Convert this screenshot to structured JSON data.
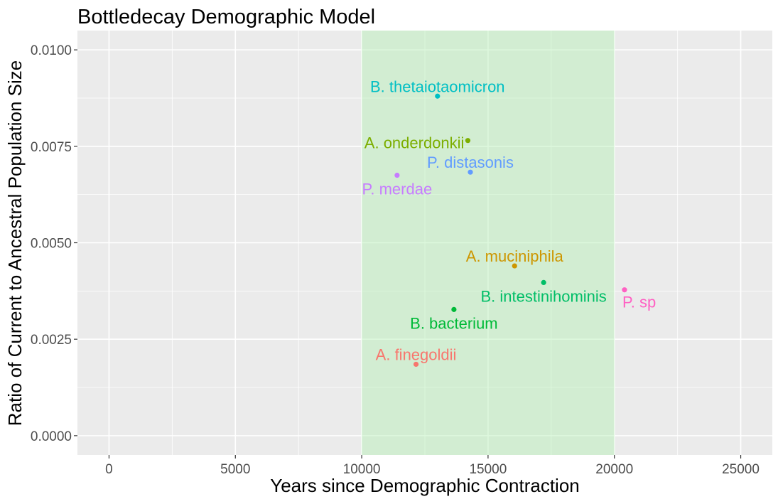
{
  "chart_data": {
    "type": "scatter",
    "title": "Bottledecay Demographic Model",
    "xlabel": "Years since Demographic Contraction",
    "ylabel": "Ratio of Current to Ancestral Population Size",
    "xlim": [
      -1250,
      26250
    ],
    "ylim": [
      -0.0005,
      0.0105
    ],
    "x_ticks": [
      0,
      5000,
      10000,
      15000,
      20000,
      25000
    ],
    "x_tick_labels": [
      "0",
      "5000",
      "10000",
      "15000",
      "20000",
      "25000"
    ],
    "y_ticks": [
      0.0,
      0.0025,
      0.005,
      0.0075,
      0.01
    ],
    "y_tick_labels": [
      "0.0000",
      "0.0025",
      "0.0050",
      "0.0075",
      "0.0100"
    ],
    "grid": true,
    "legend": "none",
    "shaded_region": {
      "x": [
        10000,
        20000
      ],
      "color": "#b3f0b3"
    },
    "colors": {
      "panel_background": "#ebebeb",
      "gridline": "#ffffff"
    },
    "points": [
      {
        "name": "B. thetaiotaomicron",
        "x": 13000,
        "y": 0.0088,
        "color": "#00BFC4",
        "label_anchor": "above"
      },
      {
        "name": "A. onderdonkii",
        "x": 14200,
        "y": 0.00765,
        "color": "#7CAE00",
        "label_anchor": "left"
      },
      {
        "name": "P. distasonis",
        "x": 14300,
        "y": 0.00683,
        "color": "#619CFF",
        "label_anchor": "above"
      },
      {
        "name": "P. merdae",
        "x": 11400,
        "y": 0.00675,
        "color": "#C77CFF",
        "label_anchor": "below"
      },
      {
        "name": "A. muciniphila",
        "x": 16050,
        "y": 0.0044,
        "color": "#CD9600",
        "label_anchor": "above"
      },
      {
        "name": "B. intestinihominis",
        "x": 17200,
        "y": 0.00397,
        "color": "#00BE67",
        "label_anchor": "below"
      },
      {
        "name": "P. sp",
        "x": 20400,
        "y": 0.00378,
        "color": "#FF61C3",
        "label_anchor": "below-right"
      },
      {
        "name": "B. bacterium",
        "x": 13650,
        "y": 0.00327,
        "color": "#00A9FF",
        "label_color": "#00BA38",
        "point_color": "#00BA38",
        "label_anchor": "below"
      },
      {
        "name": "A. finegoldii",
        "x": 12150,
        "y": 0.00185,
        "color": "#F8766D",
        "label_anchor": "above"
      }
    ]
  }
}
